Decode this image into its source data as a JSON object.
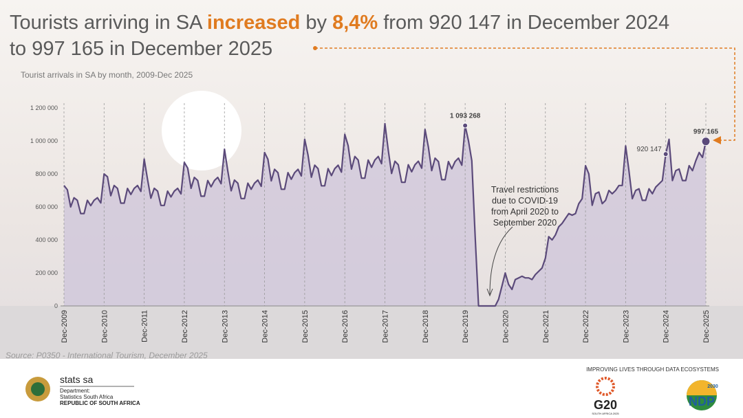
{
  "header": {
    "title": [
      "Tourists arriving in SA ",
      "increased",
      " by ",
      "8,4%",
      " from 920 147 in December 2024"
    ],
    "title_line2": "to 997 165 in December 2025"
  },
  "chart_data": {
    "type": "area",
    "subtitle": "Tourist arrivals in SA by month, 2009-Dec 2025",
    "color": "#5b4a7a",
    "fill_color": "#cdc4da",
    "categories": [
      "Dec-2009",
      null,
      null,
      null,
      null,
      null,
      null,
      null,
      null,
      null,
      null,
      null,
      "Dec-2010",
      null,
      null,
      null,
      null,
      null,
      null,
      null,
      null,
      null,
      null,
      null,
      "Dec-2011",
      null,
      null,
      null,
      null,
      null,
      null,
      null,
      null,
      null,
      null,
      null,
      "Dec-2012",
      null,
      null,
      null,
      null,
      null,
      null,
      null,
      null,
      null,
      null,
      null,
      "Dec-2013",
      null,
      null,
      null,
      null,
      null,
      null,
      null,
      null,
      null,
      null,
      null,
      "Dec-2014",
      null,
      null,
      null,
      null,
      null,
      null,
      null,
      null,
      null,
      null,
      null,
      "Dec-2015",
      null,
      null,
      null,
      null,
      null,
      null,
      null,
      null,
      null,
      null,
      null,
      "Dec-2016",
      null,
      null,
      null,
      null,
      null,
      null,
      null,
      null,
      null,
      null,
      null,
      "Dec-2017",
      null,
      null,
      null,
      null,
      null,
      null,
      null,
      null,
      null,
      null,
      null,
      "Dec-2018",
      null,
      null,
      null,
      null,
      null,
      null,
      null,
      null,
      null,
      null,
      null,
      "Dec-2019",
      null,
      null,
      null,
      null,
      null,
      null,
      null,
      null,
      null,
      null,
      null,
      "Dec-2020",
      null,
      null,
      null,
      null,
      null,
      null,
      null,
      null,
      null,
      null,
      null,
      "Dec-2021",
      null,
      null,
      null,
      null,
      null,
      null,
      null,
      null,
      null,
      null,
      null,
      "Dec-2022",
      null,
      null,
      null,
      null,
      null,
      null,
      null,
      null,
      null,
      null,
      null,
      "Dec-2023",
      null,
      null,
      null,
      null,
      null,
      null,
      null,
      null,
      null,
      null,
      null,
      "Dec-2024",
      null,
      null,
      null,
      null,
      null,
      null,
      null,
      null,
      null,
      null,
      null,
      "Dec-2025"
    ],
    "values": [
      730000,
      704000,
      600000,
      656000,
      640000,
      560000,
      560000,
      640000,
      608000,
      640000,
      656000,
      624000,
      800000,
      783000,
      668000,
      730000,
      712000,
      623000,
      623000,
      712000,
      676000,
      712000,
      730000,
      694000,
      890000,
      766000,
      653000,
      713000,
      696000,
      609000,
      609000,
      696000,
      661000,
      696000,
      713000,
      679000,
      870000,
      836000,
      713000,
      779000,
      760000,
      665000,
      665000,
      760000,
      722000,
      760000,
      779000,
      741000,
      950000,
      818000,
      698000,
      763000,
      744000,
      651000,
      651000,
      744000,
      707000,
      744000,
      763000,
      725000,
      930000,
      889000,
      758000,
      828000,
      808000,
      707000,
      707000,
      808000,
      768000,
      808000,
      828000,
      788000,
      1010000,
      915000,
      780000,
      853000,
      832000,
      728000,
      728000,
      832000,
      790000,
      832000,
      853000,
      811000,
      1040000,
      972000,
      829000,
      906000,
      884000,
      774000,
      774000,
      884000,
      840000,
      884000,
      906000,
      862000,
      1105000,
      942000,
      803000,
      877000,
      856000,
      749000,
      749000,
      856000,
      813000,
      856000,
      877000,
      835000,
      1070000,
      962000,
      820000,
      896000,
      875000,
      765000,
      765000,
      875000,
      831000,
      875000,
      896000,
      853000,
      1093268,
      1000000,
      880000,
      420000,
      0,
      0,
      0,
      0,
      0,
      0,
      40000,
      120000,
      200000,
      130000,
      100000,
      160000,
      170000,
      180000,
      170000,
      170000,
      160000,
      190000,
      210000,
      230000,
      290000,
      420000,
      400000,
      430000,
      480000,
      500000,
      530000,
      560000,
      550000,
      560000,
      620000,
      650000,
      850000,
      800000,
      610000,
      680000,
      690000,
      620000,
      640000,
      700000,
      680000,
      700000,
      730000,
      730000,
      970000,
      820000,
      650000,
      700000,
      710000,
      640000,
      640000,
      710000,
      680000,
      720000,
      740000,
      760000,
      920147,
      1010000,
      760000,
      820000,
      830000,
      760000,
      760000,
      850000,
      820000,
      880000,
      930000,
      900000,
      997165
    ],
    "value_labels": [
      null,
      null,
      null,
      null,
      null,
      null,
      null,
      null,
      null,
      null,
      null,
      null,
      null,
      null,
      null,
      null,
      null,
      null,
      null,
      null,
      null,
      null,
      null,
      null,
      null,
      null,
      null,
      null,
      null,
      null,
      null,
      null,
      null,
      null,
      null,
      null,
      null,
      null,
      null,
      null,
      null,
      null,
      null,
      null,
      null,
      null,
      null,
      null,
      null,
      null,
      null,
      null,
      null,
      null,
      null,
      null,
      null,
      null,
      null,
      null,
      null,
      null,
      null,
      null,
      null,
      null,
      null,
      null,
      null,
      null,
      null,
      null,
      null,
      null,
      null,
      null,
      null,
      null,
      null,
      null,
      null,
      null,
      null,
      null,
      null,
      null,
      null,
      null,
      null,
      null,
      null,
      null,
      null,
      null,
      null,
      null,
      null,
      null,
      null,
      null,
      null,
      null,
      null,
      null,
      null,
      null,
      null,
      null,
      null,
      null,
      null,
      null,
      null,
      null,
      null,
      null,
      null,
      null,
      null,
      null,
      "1 093 268",
      null,
      null,
      null,
      null,
      null,
      null,
      null,
      null,
      null,
      null,
      null,
      null,
      null,
      null,
      null,
      null,
      null,
      null,
      null,
      null,
      null,
      null,
      null,
      null,
      null,
      null,
      null,
      null,
      null,
      null,
      null,
      null,
      null,
      null,
      null,
      null,
      null,
      null,
      null,
      null,
      null,
      null,
      null,
      null,
      null,
      null,
      null,
      null,
      null,
      null,
      null,
      null,
      null,
      null,
      null,
      null,
      null,
      null,
      null,
      "920 147",
      null,
      null,
      null,
      null,
      null,
      null,
      null,
      null,
      null,
      null,
      null,
      "997 165"
    ],
    "ylim": [
      0,
      1200000
    ],
    "yticks": [
      0,
      {
        "value": 200000,
        "label": "200 000"
      },
      {
        "value": 400000,
        "label": "400 000"
      },
      {
        "value": 600000,
        "label": "600 000"
      },
      {
        "value": 800000,
        "label": "800 000"
      },
      {
        "value": 1000000,
        "label": "1 000 000"
      },
      {
        "value": 1200000,
        "label": "1 200 000"
      }
    ],
    "annotation": [
      "Travel restrictions",
      "due to COVID-19",
      "from April 2020 to",
      "September 2020"
    ]
  },
  "source": "Source: P0350 - International Tourism, December 2025",
  "footer": {
    "org": "stats sa",
    "dept": "Department:",
    "dept_name": "Statistics South Africa",
    "country": "REPUBLIC OF SOUTH AFRICA",
    "slogan": "IMPROVING LIVES THROUGH DATA ECOSYSTEMS",
    "g20": "G20",
    "g20_sub": "SOUTH AFRICA 2025",
    "ndp": "NDP",
    "ndp_year": "2030"
  }
}
